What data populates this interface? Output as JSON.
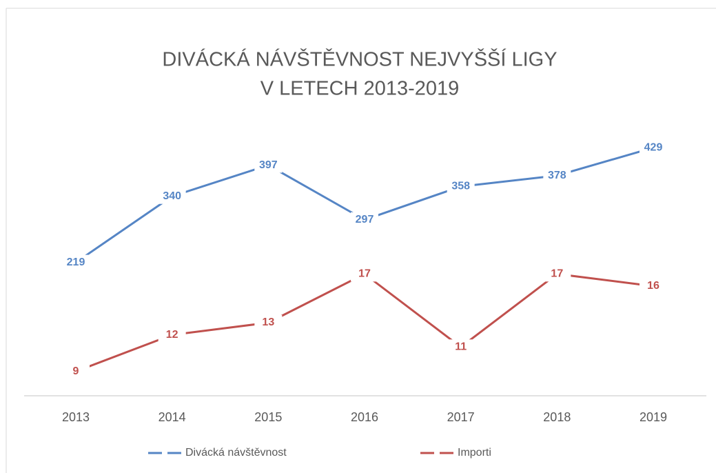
{
  "chart_data": {
    "type": "line",
    "title": [
      "DIVÁCKÁ NÁVŠTĚVNOST NEJVYŠŠÍ LIGY",
      "V LETECH 2013-2019"
    ],
    "categories": [
      "2013",
      "2014",
      "2015",
      "2016",
      "2017",
      "2018",
      "2019"
    ],
    "series": [
      {
        "name": "Divácká návštěvnost",
        "color": "#5585c5",
        "values": [
          219,
          340,
          397,
          297,
          358,
          378,
          429
        ]
      },
      {
        "name": "Importi",
        "color": "#c0504d",
        "values": [
          9,
          12,
          13,
          17,
          11,
          17,
          16
        ],
        "axis": "y2"
      }
    ],
    "ylim": [
      -25,
      510
    ],
    "y2lim": [
      7,
      31
    ],
    "legend": "bottom"
  }
}
